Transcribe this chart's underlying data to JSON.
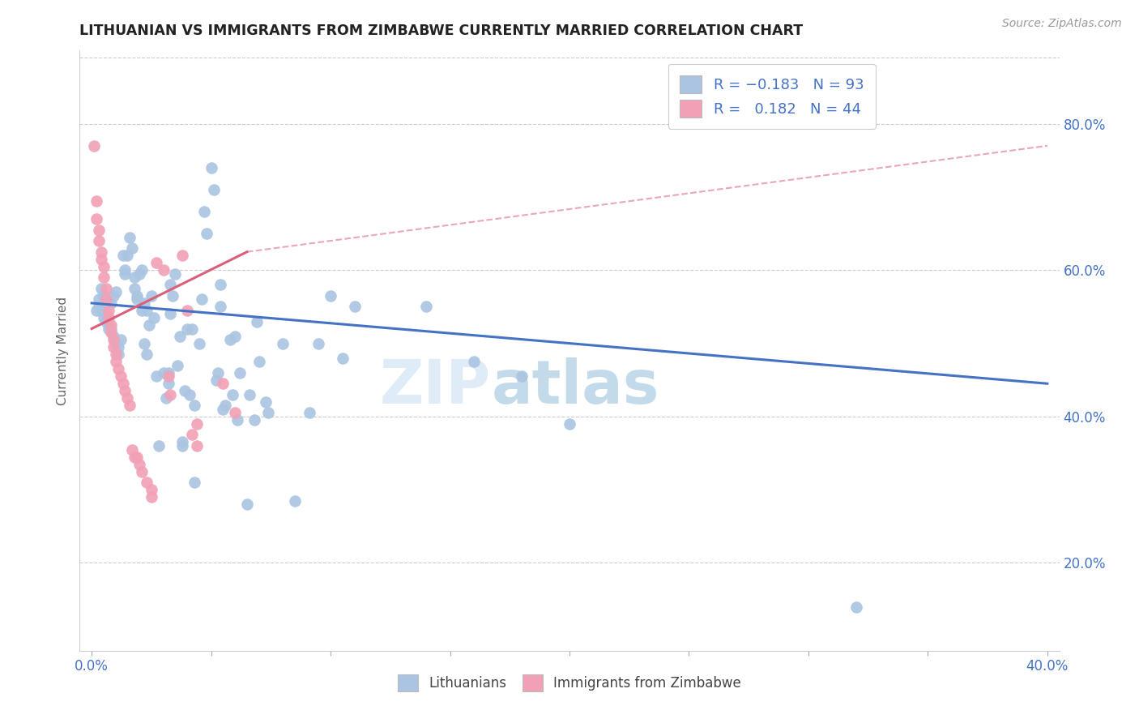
{
  "title": "LITHUANIAN VS IMMIGRANTS FROM ZIMBABWE CURRENTLY MARRIED CORRELATION CHART",
  "source": "Source: ZipAtlas.com",
  "ylabel": "Currently Married",
  "x_ticks": [
    0.0,
    0.05,
    0.1,
    0.15,
    0.2,
    0.25,
    0.3,
    0.35,
    0.4
  ],
  "x_tick_labels": [
    "0.0%",
    "",
    "",
    "",
    "",
    "",
    "",
    "",
    "40.0%"
  ],
  "y_ticks": [
    0.2,
    0.4,
    0.6,
    0.8
  ],
  "y_tick_labels": [
    "20.0%",
    "40.0%",
    "60.0%",
    "80.0%"
  ],
  "xlim": [
    -0.005,
    0.405
  ],
  "ylim": [
    0.08,
    0.9
  ],
  "watermark": "ZIPatlas",
  "blue_color": "#aac4e2",
  "pink_color": "#f2a0b5",
  "blue_line_color": "#4472c4",
  "pink_line_color": "#d9607a",
  "blue_scatter": [
    [
      0.002,
      0.545
    ],
    [
      0.003,
      0.56
    ],
    [
      0.003,
      0.55
    ],
    [
      0.004,
      0.545
    ],
    [
      0.004,
      0.575
    ],
    [
      0.005,
      0.565
    ],
    [
      0.005,
      0.535
    ],
    [
      0.006,
      0.53
    ],
    [
      0.006,
      0.54
    ],
    [
      0.007,
      0.52
    ],
    [
      0.007,
      0.525
    ],
    [
      0.008,
      0.555
    ],
    [
      0.008,
      0.52
    ],
    [
      0.009,
      0.51
    ],
    [
      0.009,
      0.565
    ],
    [
      0.01,
      0.57
    ],
    [
      0.01,
      0.5
    ],
    [
      0.011,
      0.495
    ],
    [
      0.011,
      0.485
    ],
    [
      0.012,
      0.505
    ],
    [
      0.013,
      0.62
    ],
    [
      0.014,
      0.6
    ],
    [
      0.014,
      0.595
    ],
    [
      0.015,
      0.62
    ],
    [
      0.016,
      0.645
    ],
    [
      0.017,
      0.63
    ],
    [
      0.018,
      0.59
    ],
    [
      0.018,
      0.575
    ],
    [
      0.019,
      0.565
    ],
    [
      0.019,
      0.56
    ],
    [
      0.02,
      0.595
    ],
    [
      0.021,
      0.6
    ],
    [
      0.021,
      0.545
    ],
    [
      0.022,
      0.555
    ],
    [
      0.022,
      0.5
    ],
    [
      0.023,
      0.485
    ],
    [
      0.023,
      0.545
    ],
    [
      0.024,
      0.525
    ],
    [
      0.025,
      0.565
    ],
    [
      0.026,
      0.535
    ],
    [
      0.027,
      0.455
    ],
    [
      0.028,
      0.36
    ],
    [
      0.03,
      0.46
    ],
    [
      0.031,
      0.425
    ],
    [
      0.032,
      0.46
    ],
    [
      0.032,
      0.445
    ],
    [
      0.033,
      0.54
    ],
    [
      0.033,
      0.58
    ],
    [
      0.034,
      0.565
    ],
    [
      0.035,
      0.595
    ],
    [
      0.036,
      0.47
    ],
    [
      0.037,
      0.51
    ],
    [
      0.038,
      0.365
    ],
    [
      0.038,
      0.36
    ],
    [
      0.039,
      0.435
    ],
    [
      0.04,
      0.52
    ],
    [
      0.041,
      0.43
    ],
    [
      0.042,
      0.52
    ],
    [
      0.043,
      0.415
    ],
    [
      0.043,
      0.31
    ],
    [
      0.045,
      0.5
    ],
    [
      0.046,
      0.56
    ],
    [
      0.047,
      0.68
    ],
    [
      0.048,
      0.65
    ],
    [
      0.05,
      0.74
    ],
    [
      0.051,
      0.71
    ],
    [
      0.052,
      0.45
    ],
    [
      0.053,
      0.46
    ],
    [
      0.054,
      0.55
    ],
    [
      0.054,
      0.58
    ],
    [
      0.055,
      0.41
    ],
    [
      0.056,
      0.415
    ],
    [
      0.058,
      0.505
    ],
    [
      0.059,
      0.43
    ],
    [
      0.06,
      0.51
    ],
    [
      0.061,
      0.395
    ],
    [
      0.062,
      0.46
    ],
    [
      0.065,
      0.28
    ],
    [
      0.066,
      0.43
    ],
    [
      0.068,
      0.395
    ],
    [
      0.069,
      0.53
    ],
    [
      0.07,
      0.475
    ],
    [
      0.073,
      0.42
    ],
    [
      0.074,
      0.405
    ],
    [
      0.08,
      0.5
    ],
    [
      0.085,
      0.285
    ],
    [
      0.091,
      0.405
    ],
    [
      0.095,
      0.5
    ],
    [
      0.1,
      0.565
    ],
    [
      0.105,
      0.48
    ],
    [
      0.11,
      0.55
    ],
    [
      0.14,
      0.55
    ],
    [
      0.16,
      0.475
    ],
    [
      0.18,
      0.455
    ],
    [
      0.2,
      0.39
    ],
    [
      0.32,
      0.14
    ]
  ],
  "pink_scatter": [
    [
      0.001,
      0.77
    ],
    [
      0.002,
      0.695
    ],
    [
      0.002,
      0.67
    ],
    [
      0.003,
      0.655
    ],
    [
      0.003,
      0.64
    ],
    [
      0.004,
      0.625
    ],
    [
      0.004,
      0.615
    ],
    [
      0.005,
      0.605
    ],
    [
      0.005,
      0.59
    ],
    [
      0.006,
      0.575
    ],
    [
      0.006,
      0.56
    ],
    [
      0.007,
      0.545
    ],
    [
      0.007,
      0.535
    ],
    [
      0.008,
      0.525
    ],
    [
      0.008,
      0.515
    ],
    [
      0.009,
      0.505
    ],
    [
      0.009,
      0.495
    ],
    [
      0.01,
      0.485
    ],
    [
      0.01,
      0.475
    ],
    [
      0.011,
      0.465
    ],
    [
      0.012,
      0.455
    ],
    [
      0.013,
      0.445
    ],
    [
      0.014,
      0.435
    ],
    [
      0.015,
      0.425
    ],
    [
      0.016,
      0.415
    ],
    [
      0.017,
      0.355
    ],
    [
      0.018,
      0.345
    ],
    [
      0.019,
      0.345
    ],
    [
      0.02,
      0.335
    ],
    [
      0.021,
      0.325
    ],
    [
      0.023,
      0.31
    ],
    [
      0.025,
      0.3
    ],
    [
      0.025,
      0.29
    ],
    [
      0.027,
      0.61
    ],
    [
      0.03,
      0.6
    ],
    [
      0.032,
      0.455
    ],
    [
      0.033,
      0.43
    ],
    [
      0.038,
      0.62
    ],
    [
      0.04,
      0.545
    ],
    [
      0.042,
      0.375
    ],
    [
      0.044,
      0.36
    ],
    [
      0.044,
      0.39
    ],
    [
      0.055,
      0.445
    ],
    [
      0.06,
      0.405
    ]
  ],
  "blue_line": {
    "x0": 0.0,
    "y0": 0.555,
    "x1": 0.4,
    "y1": 0.445
  },
  "pink_line": {
    "x0": 0.0,
    "y0": 0.52,
    "x1": 0.065,
    "y1": 0.625
  },
  "pink_dash_line": {
    "x0": 0.065,
    "y0": 0.625,
    "x1": 0.4,
    "y1": 0.77
  }
}
